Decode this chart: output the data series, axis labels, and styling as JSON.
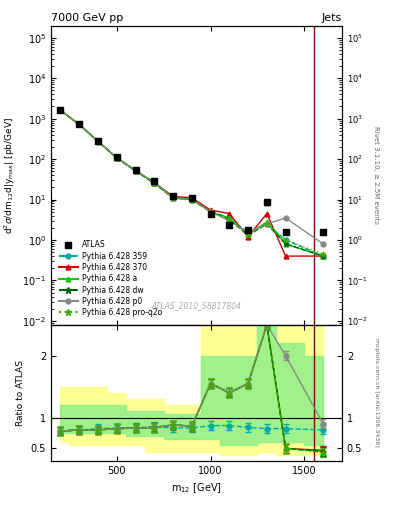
{
  "title": "7000 GeV pp",
  "title_right": "Jets",
  "xlabel": "m$_{12}$ [GeV]",
  "ylabel_main": "d$^2\\sigma$/dm$_{12}$d|y$_{max}$| [pb/GeV]",
  "ylabel_ratio": "Ratio to ATLAS",
  "watermark": "ATLAS_2010_S8817804",
  "rivet_label": "Rivet 3.1.10, ≥ 2.5M events",
  "arxiv_label": "mcplots.cern.ch [arXiv:1306.3436]",
  "x_data": [
    200,
    300,
    400,
    500,
    600,
    700,
    800,
    900,
    1000,
    1100,
    1200,
    1300,
    1400,
    1600
  ],
  "atlas_y": [
    1600,
    750,
    280,
    110,
    55,
    28,
    12,
    11,
    4.5,
    2.3,
    1.8,
    8.5,
    1.6,
    1.6
  ],
  "atlas_yerr": [
    100,
    50,
    20,
    8,
    4,
    2,
    1,
    0.8,
    0.4,
    0.2,
    0.2,
    1.0,
    0.2,
    0.2
  ],
  "py359_y": [
    1600,
    720,
    270,
    105,
    50,
    25,
    11,
    10,
    5.0,
    3.5,
    1.5,
    2.5,
    1.0,
    0.4
  ],
  "py370_y": [
    1600,
    720,
    275,
    108,
    52,
    26,
    12,
    11,
    5.5,
    4.5,
    1.2,
    4.5,
    0.4,
    0.4
  ],
  "pya_y": [
    1600,
    720,
    275,
    108,
    52,
    26,
    11,
    10,
    5.0,
    3.5,
    1.4,
    2.8,
    0.8,
    0.4
  ],
  "pydw_y": [
    1600,
    720,
    275,
    108,
    52,
    26,
    11,
    10,
    5.0,
    3.2,
    1.3,
    2.5,
    0.8,
    0.4
  ],
  "pyp0_y": [
    1600,
    720,
    275,
    108,
    52,
    27,
    11,
    10,
    5.0,
    3.0,
    1.5,
    2.5,
    3.5,
    0.8
  ],
  "pyq2o_y": [
    1600,
    720,
    275,
    108,
    52,
    26,
    11,
    10,
    5.0,
    3.2,
    1.3,
    2.5,
    1.0,
    0.45
  ],
  "ratio_py359": [
    0.78,
    0.8,
    0.82,
    0.83,
    0.84,
    0.85,
    0.83,
    0.83,
    0.87,
    0.87,
    0.84,
    0.82,
    0.82,
    0.8
  ],
  "ratio_py370": [
    0.78,
    0.8,
    0.8,
    0.82,
    0.83,
    0.84,
    0.88,
    0.86,
    1.55,
    1.4,
    1.55,
    2.5,
    0.5,
    0.47
  ],
  "ratio_pya": [
    0.78,
    0.8,
    0.8,
    0.82,
    0.83,
    0.84,
    0.88,
    0.86,
    1.55,
    1.4,
    1.55,
    2.5,
    0.5,
    0.45
  ],
  "ratio_pydw": [
    0.78,
    0.8,
    0.8,
    0.82,
    0.83,
    0.84,
    0.88,
    0.86,
    1.55,
    1.4,
    1.55,
    2.5,
    0.5,
    0.45
  ],
  "ratio_pyp0": [
    0.78,
    0.8,
    0.8,
    0.82,
    0.83,
    0.84,
    0.88,
    0.86,
    1.55,
    1.4,
    1.55,
    2.5,
    2.0,
    0.9
  ],
  "ratio_pyq2o": [
    0.78,
    0.8,
    0.8,
    0.82,
    0.83,
    0.84,
    0.88,
    0.86,
    1.55,
    1.4,
    1.55,
    2.5,
    0.5,
    0.43
  ],
  "band_green_lo": [
    0.75,
    0.75,
    0.75,
    0.75,
    0.7,
    0.7,
    0.65,
    0.65,
    0.65,
    0.55,
    0.55,
    0.6,
    0.6,
    0.55
  ],
  "band_green_hi": [
    1.2,
    1.2,
    1.2,
    1.2,
    1.1,
    1.1,
    1.05,
    1.05,
    2.0,
    2.0,
    2.0,
    2.8,
    2.2,
    2.0
  ],
  "band_yellow_lo": [
    0.6,
    0.55,
    0.55,
    0.55,
    0.55,
    0.45,
    0.45,
    0.45,
    0.45,
    0.4,
    0.4,
    0.45,
    0.4,
    0.4
  ],
  "band_yellow_hi": [
    1.5,
    1.5,
    1.5,
    1.4,
    1.3,
    1.3,
    1.2,
    1.2,
    2.5,
    2.8,
    2.8,
    3.0,
    2.5,
    2.8
  ],
  "xlim": [
    150,
    1700
  ],
  "ylim_main": [
    0.008,
    200000
  ],
  "ylim_ratio": [
    0.3,
    2.5
  ],
  "color_atlas": "#000000",
  "color_py359": "#00aaaa",
  "color_py370": "#cc0000",
  "color_pya": "#00cc00",
  "color_pydw": "#006600",
  "color_pyp0": "#888888",
  "color_pyq2o": "#44aa00",
  "color_red_line": "#880000"
}
